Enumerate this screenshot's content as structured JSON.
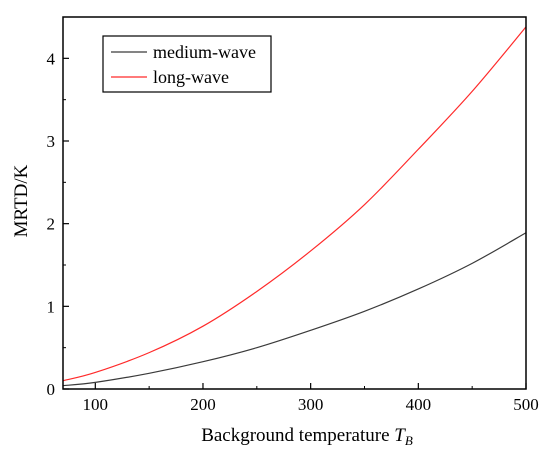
{
  "chart_data": {
    "type": "line",
    "xlabel": "Background temperature ",
    "xlabel_symbol": "T",
    "xlabel_subscript": "B",
    "ylabel": "MRTD/K",
    "xlim": [
      70,
      500
    ],
    "ylim": [
      0,
      4.5
    ],
    "xticks": [
      "100",
      "200",
      "300",
      "400",
      "500"
    ],
    "yticks": [
      "0",
      "1",
      "2",
      "3",
      "4"
    ],
    "grid": false,
    "legend_position": "top-left",
    "x": [
      70,
      100,
      150,
      200,
      250,
      300,
      350,
      400,
      450,
      500
    ],
    "series": [
      {
        "name": "medium-wave",
        "color": "#3a3a3a",
        "values": [
          0.04,
          0.08,
          0.19,
          0.33,
          0.5,
          0.71,
          0.94,
          1.21,
          1.52,
          1.89
        ]
      },
      {
        "name": "long-wave",
        "color": "#ff2a2a",
        "values": [
          0.1,
          0.2,
          0.44,
          0.76,
          1.18,
          1.67,
          2.23,
          2.9,
          3.6,
          4.38
        ]
      }
    ]
  }
}
